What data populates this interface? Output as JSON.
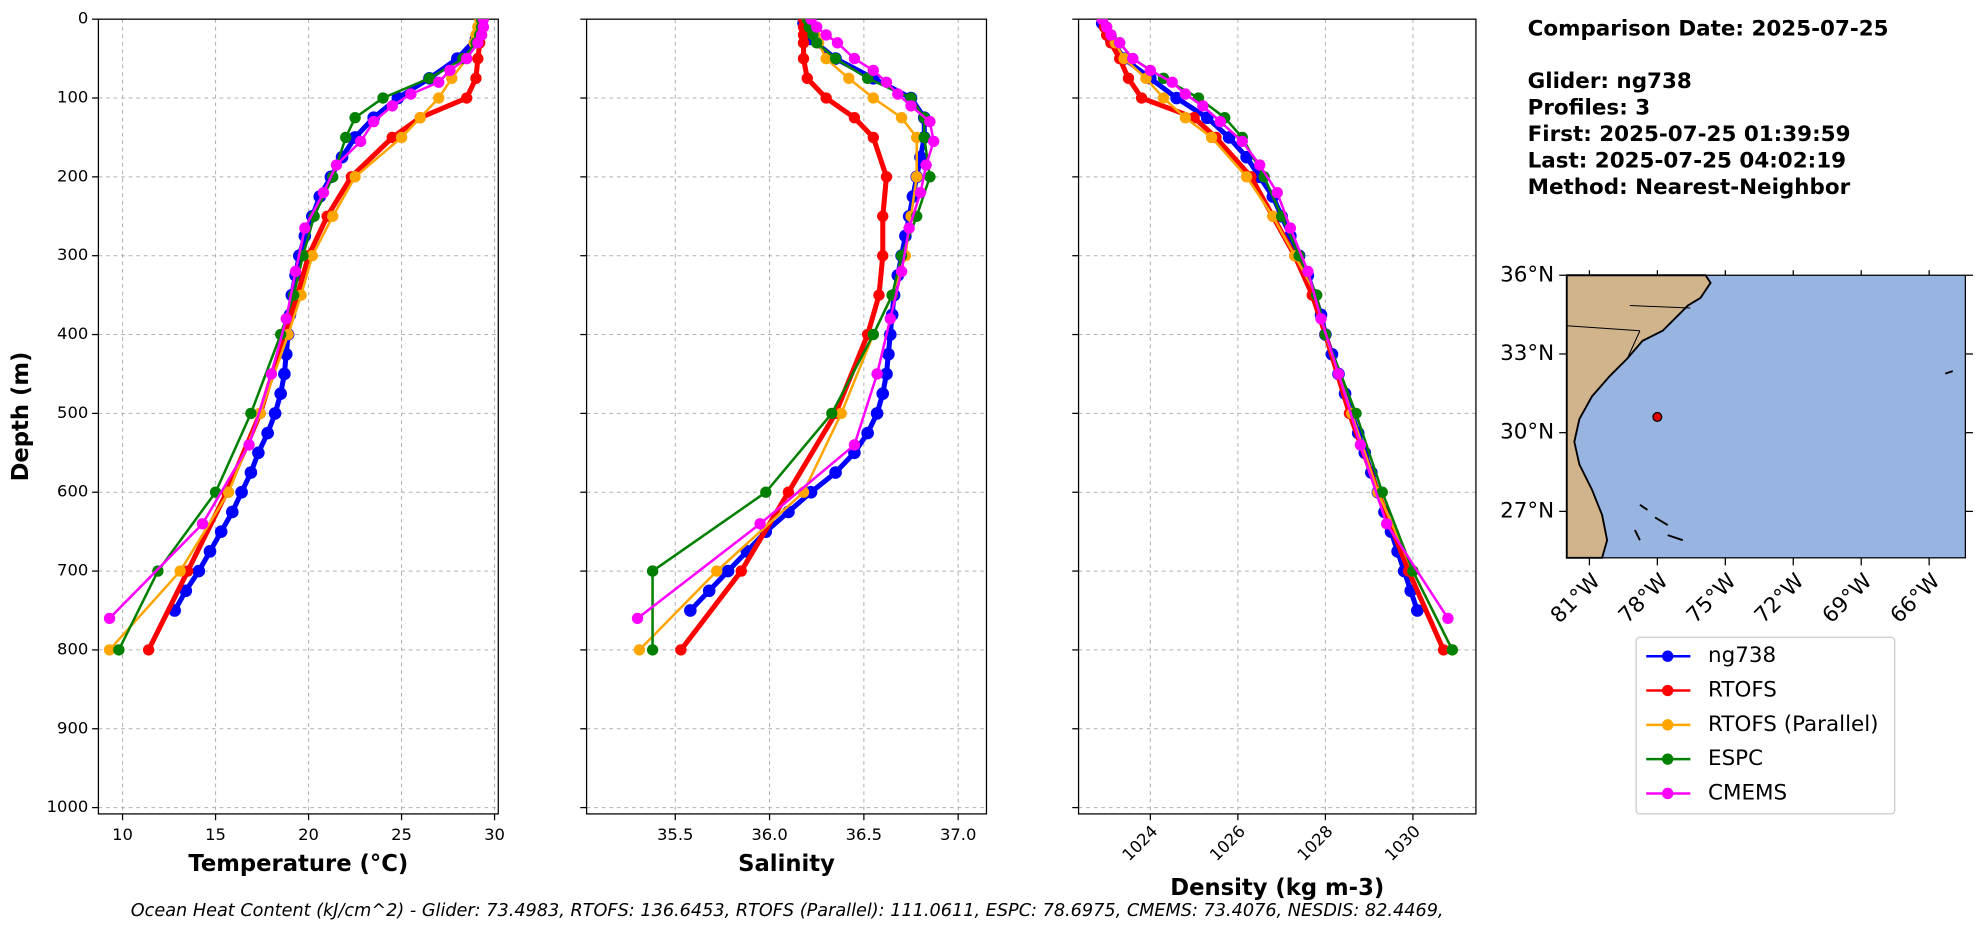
{
  "chart_data": {
    "type": "profile",
    "ylabel": "Depth (m)",
    "ylim": [
      0,
      1008
    ],
    "invert_y": true,
    "yticks": [
      0,
      100,
      200,
      300,
      400,
      500,
      600,
      700,
      800,
      900,
      1000
    ],
    "grid": true,
    "panels": [
      {
        "xlabel": "Temperature (°C)",
        "xlim": [
          8.7,
          30.2
        ],
        "xticks": [
          10,
          15,
          20,
          25,
          30
        ]
      },
      {
        "xlabel": "Salinity",
        "xlim": [
          35.03,
          37.15
        ],
        "xticks": [
          35.5,
          {
            "value": 36,
            "label": "36.0"
          },
          36.5,
          {
            "value": 37,
            "label": "37.0"
          }
        ]
      },
      {
        "xlabel": "Density (kg m-3)",
        "xlim": [
          1022.36,
          1031.44
        ],
        "xticks": [
          1024,
          1026,
          1028,
          1030
        ],
        "rotate_xticks": true
      }
    ],
    "series": [
      {
        "name": "ng738",
        "color": "#0000ff",
        "depth": [
          5,
          25,
          50,
          75,
          100,
          125,
          150,
          175,
          200,
          225,
          250,
          275,
          300,
          325,
          350,
          375,
          400,
          425,
          450,
          475,
          500,
          525,
          550,
          575,
          600,
          625,
          650,
          675,
          700,
          725,
          750
        ],
        "values": [
          [
            29.3,
            29.0,
            28.0,
            26.5,
            24.8,
            23.5,
            22.5,
            21.8,
            21.2,
            20.6,
            20.2,
            19.8,
            19.5,
            19.3,
            19.1,
            19.0,
            18.9,
            18.8,
            18.7,
            18.5,
            18.2,
            17.8,
            17.3,
            16.9,
            16.4,
            15.9,
            15.3,
            14.7,
            14.1,
            13.4,
            12.8
          ],
          [
            36.18,
            36.22,
            36.35,
            36.55,
            36.75,
            36.82,
            36.82,
            36.8,
            36.78,
            36.76,
            36.74,
            36.72,
            36.7,
            36.68,
            36.66,
            36.65,
            36.64,
            36.63,
            36.62,
            36.6,
            36.57,
            36.52,
            36.45,
            36.35,
            36.22,
            36.1,
            35.98,
            35.88,
            35.78,
            35.68,
            35.58
          ],
          [
            1022.9,
            1023.1,
            1023.4,
            1024.0,
            1024.6,
            1025.3,
            1025.8,
            1026.2,
            1026.5,
            1026.8,
            1027.0,
            1027.2,
            1027.4,
            1027.6,
            1027.75,
            1027.9,
            1028.0,
            1028.15,
            1028.3,
            1028.45,
            1028.6,
            1028.75,
            1028.9,
            1029.05,
            1029.2,
            1029.35,
            1029.5,
            1029.65,
            1029.8,
            1029.95,
            1030.1
          ]
        ]
      },
      {
        "name": "RTOFS",
        "color": "#ff0000",
        "depth": [
          0,
          10,
          20,
          30,
          50,
          75,
          100,
          125,
          150,
          200,
          250,
          300,
          350,
          400,
          500,
          600,
          700,
          800
        ],
        "values": [
          [
            29.3,
            29.3,
            29.3,
            29.2,
            29.1,
            29.0,
            28.5,
            26.0,
            24.5,
            22.3,
            21.0,
            20.0,
            19.4,
            18.7,
            17.4,
            15.6,
            13.5,
            11.4
          ],
          [
            36.18,
            36.18,
            36.18,
            36.18,
            36.18,
            36.2,
            36.3,
            36.45,
            36.55,
            36.62,
            36.6,
            36.6,
            36.58,
            36.52,
            36.35,
            36.1,
            35.85,
            35.53
          ],
          [
            1022.9,
            1022.95,
            1023.0,
            1023.1,
            1023.3,
            1023.5,
            1023.8,
            1025.0,
            1025.5,
            1026.3,
            1026.8,
            1027.3,
            1027.7,
            1028.0,
            1028.55,
            1029.2,
            1029.9,
            1030.7
          ]
        ]
      },
      {
        "name": "RTOFS (Parallel)",
        "color": "#ffa500",
        "depth": [
          0,
          10,
          20,
          30,
          50,
          75,
          100,
          125,
          150,
          200,
          250,
          300,
          350,
          400,
          500,
          600,
          700,
          800
        ],
        "values": [
          [
            29.2,
            29.1,
            29.0,
            28.9,
            28.5,
            27.7,
            27.0,
            26.0,
            25.0,
            22.5,
            21.3,
            20.2,
            19.6,
            18.9,
            17.4,
            15.7,
            13.1,
            9.3
          ],
          [
            36.2,
            36.22,
            36.24,
            36.26,
            36.3,
            36.42,
            36.55,
            36.7,
            36.78,
            36.78,
            36.75,
            36.72,
            36.65,
            36.55,
            36.38,
            36.18,
            35.72,
            35.31
          ],
          [
            1022.9,
            1023.0,
            1023.1,
            1023.2,
            1023.4,
            1023.9,
            1024.3,
            1024.8,
            1025.4,
            1026.2,
            1026.8,
            1027.3,
            1027.8,
            1028.0,
            1028.6,
            1029.2,
            1030.0,
            1030.9
          ]
        ]
      },
      {
        "name": "ESPC",
        "color": "#008000",
        "depth": [
          0,
          10,
          20,
          30,
          50,
          75,
          100,
          125,
          150,
          200,
          250,
          300,
          350,
          400,
          500,
          600,
          700,
          800
        ],
        "values": [
          [
            29.3,
            29.3,
            29.2,
            29.0,
            28.3,
            26.5,
            24.0,
            22.5,
            22.0,
            21.3,
            20.3,
            19.7,
            19.2,
            18.5,
            16.9,
            15.0,
            11.9,
            9.8
          ],
          [
            36.2,
            36.21,
            36.23,
            36.25,
            36.35,
            36.52,
            36.75,
            36.82,
            36.82,
            36.85,
            36.78,
            36.7,
            36.65,
            36.55,
            36.33,
            35.98,
            35.38,
            35.38
          ],
          [
            1022.9,
            1023.0,
            1023.1,
            1023.3,
            1023.6,
            1024.3,
            1025.1,
            1025.7,
            1026.1,
            1026.6,
            1027.0,
            1027.4,
            1027.8,
            1028.0,
            1028.7,
            1029.3,
            1030.0,
            1030.9
          ]
        ]
      },
      {
        "name": "CMEMS",
        "color": "#ff00ff",
        "depth": [
          0,
          10,
          20,
          30,
          50,
          65,
          80,
          95,
          110,
          130,
          155,
          185,
          220,
          265,
          320,
          380,
          450,
          540,
          640,
          760
        ],
        "values": [
          [
            29.4,
            29.4,
            29.3,
            29.1,
            28.5,
            27.6,
            27.0,
            25.5,
            24.5,
            23.5,
            22.8,
            21.5,
            20.8,
            19.8,
            19.3,
            18.8,
            18.0,
            16.8,
            14.3,
            9.3
          ],
          [
            36.22,
            36.25,
            36.3,
            36.36,
            36.45,
            36.55,
            36.62,
            36.68,
            36.75,
            36.85,
            36.87,
            36.83,
            36.8,
            36.74,
            36.7,
            36.64,
            36.57,
            36.45,
            35.95,
            35.3
          ],
          [
            1022.9,
            1023.0,
            1023.1,
            1023.3,
            1023.6,
            1024.0,
            1024.5,
            1024.8,
            1025.2,
            1025.6,
            1026.1,
            1026.5,
            1026.9,
            1027.2,
            1027.6,
            1027.9,
            1028.3,
            1028.8,
            1029.4,
            1030.8
          ]
        ]
      }
    ]
  },
  "info": [
    "Comparison Date: 2025-07-25",
    "Glider: ng738",
    "Profiles: 3",
    "First: 2025-07-25 01:39:59",
    "Last: 2025-07-25 04:02:19",
    "Method: Nearest-Neighbor"
  ],
  "map": {
    "lonlim": [
      -82,
      -64.4
    ],
    "latlim": [
      25.23,
      36.0
    ],
    "lonticks": [
      {
        "value": -81,
        "label": "81°W"
      },
      {
        "value": -78,
        "label": "78°W"
      },
      {
        "value": -75,
        "label": "75°W"
      },
      {
        "value": -72,
        "label": "72°W"
      },
      {
        "value": -69,
        "label": "69°W"
      },
      {
        "value": -66,
        "label": "66°W"
      }
    ],
    "latticks": [
      {
        "value": 36,
        "label": "36°N"
      },
      {
        "value": 33,
        "label": "33°N"
      },
      {
        "value": 30,
        "label": "30°N"
      },
      {
        "value": 27,
        "label": "27°N"
      }
    ],
    "glider": {
      "lon": -78,
      "lat": 30.6
    }
  },
  "footnote": "Ocean Heat Content (kJ/cm^2) - Glider: 73.4983,  RTOFS: 136.6453,  RTOFS (Parallel): 111.0611,  ESPC: 78.6975,  CMEMS: 73.4076,  NESDIS: 82.4469,"
}
